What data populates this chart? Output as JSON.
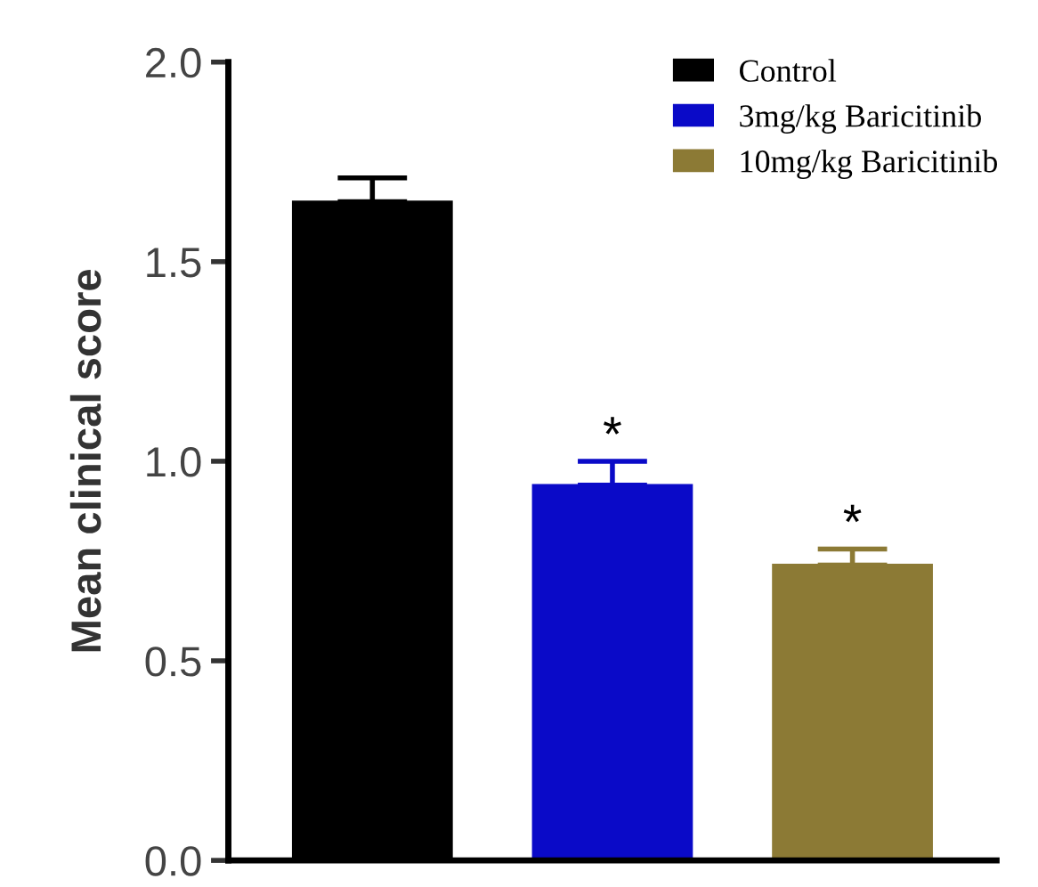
{
  "chart_data": {
    "type": "bar",
    "ylabel": "Mean clinical score",
    "categories": [
      null,
      null,
      null
    ],
    "series": [
      {
        "name": "Control",
        "color": "#000000",
        "values": [
          1.65,
          null,
          null
        ],
        "errors": [
          0.06,
          null,
          null
        ]
      },
      {
        "name": "3mg/kg Baricitinib",
        "color": "#0a0ac8",
        "values": [
          null,
          0.94,
          null
        ],
        "errors": [
          null,
          0.06,
          null
        ],
        "value_labels": [
          null,
          "*",
          null
        ]
      },
      {
        "name": "10mg/kg Baricitinib",
        "color": "#8c7a35",
        "values": [
          null,
          null,
          0.74
        ],
        "errors": [
          null,
          null,
          0.04
        ],
        "value_labels": [
          null,
          null,
          "*"
        ]
      }
    ],
    "ylim": [
      0,
      2.0
    ],
    "yticks": [
      {
        "value": 0,
        "label": "0.0"
      },
      0.5,
      {
        "value": 1,
        "label": "1.0"
      },
      1.5,
      {
        "value": 2,
        "label": "2.0"
      }
    ],
    "legend": "top right",
    "grid": false
  }
}
